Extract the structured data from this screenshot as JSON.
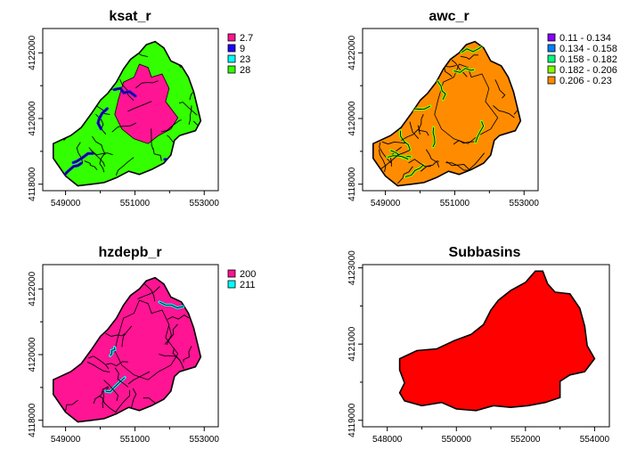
{
  "chart_data": [
    {
      "type": "choropleth-map",
      "title": "ksat_r",
      "xticks": [
        "549000",
        "551000",
        "553000"
      ],
      "yticks": [
        "4118000",
        "4120000",
        "4122000"
      ],
      "legend": {
        "placement": "right",
        "entries": [
          {
            "label": "2.7",
            "color": "#ff1493"
          },
          {
            "label": "9",
            "color": "#2200ff"
          },
          {
            "label": "23",
            "color": "#00ffff"
          },
          {
            "label": "28",
            "color": "#33ff00"
          }
        ]
      },
      "base_color": "#33ff00",
      "core_color": "#ff1493",
      "accent_color": "#2200ff"
    },
    {
      "type": "choropleth-map",
      "title": "awc_r",
      "xticks": [
        "549000",
        "551000",
        "553000"
      ],
      "yticks": [
        "4118000",
        "4120000",
        "4122000"
      ],
      "legend": {
        "placement": "right",
        "entries": [
          {
            "label": "0.11 - 0.134",
            "color": "#8a00ff"
          },
          {
            "label": "0.134 - 0.158",
            "color": "#0080ff"
          },
          {
            "label": "0.158 - 0.182",
            "color": "#00ff80"
          },
          {
            "label": "0.182 - 0.206",
            "color": "#80ff00"
          },
          {
            "label": "0.206 - 0.23",
            "color": "#ff8c00"
          }
        ]
      },
      "base_color": "#ff8c00",
      "core_color": "#ff8c00",
      "accent_color": "#80ff00"
    },
    {
      "type": "choropleth-map",
      "title": "hzdepb_r",
      "xticks": [
        "549000",
        "551000",
        "553000"
      ],
      "yticks": [
        "4118000",
        "4120000",
        "4122000"
      ],
      "legend": {
        "placement": "right",
        "entries": [
          {
            "label": "200",
            "color": "#ff1493"
          },
          {
            "label": "211",
            "color": "#00ffff"
          }
        ]
      },
      "base_color": "#ff1493",
      "core_color": "#ff1493",
      "accent_color": "#00ffff"
    },
    {
      "type": "choropleth-map",
      "title": "Subbasins",
      "xticks": [
        "548000",
        "550000",
        "552000",
        "554000"
      ],
      "yticks": [
        "4119000",
        "4121000",
        "4123000"
      ],
      "legend": null,
      "base_color": "#ff0000"
    }
  ]
}
